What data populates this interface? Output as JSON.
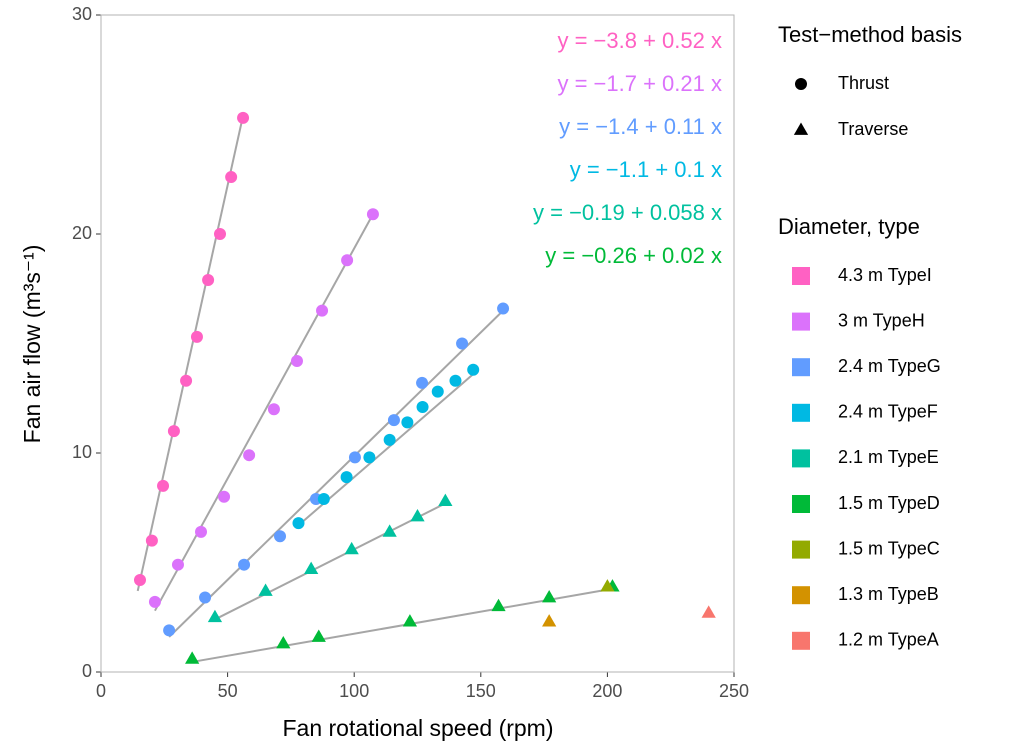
{
  "chart_data": {
    "type": "scatter",
    "x_label": "Fan rotational speed (rpm)",
    "y_label": "Fan air flow (m³s⁻¹)",
    "xlim": [
      0,
      250
    ],
    "ylim": [
      0,
      30
    ],
    "xticks": [
      0,
      50,
      100,
      150,
      200,
      250
    ],
    "yticks": [
      0,
      10,
      20,
      30
    ],
    "x_minor_grid": [
      25,
      75,
      125,
      175,
      225
    ],
    "y_minor_grid": [
      5,
      15,
      25
    ],
    "grid": true,
    "shape_legend_title": "Test−method basis",
    "shapes": [
      {
        "name": "Thrust",
        "shape": "circle"
      },
      {
        "name": "Traverse",
        "shape": "triangle"
      }
    ],
    "color_legend_title": "Diameter, type",
    "fit_color": "#a6a6a6",
    "series": [
      {
        "name": "4.3 m TypeI",
        "color": "#FF61C3",
        "shape": "circle",
        "x": [
          15.4,
          20.1,
          24.5,
          28.8,
          33.6,
          37.9,
          42.3,
          47.0,
          51.4,
          56.1
        ],
        "values": [
          4.2,
          6.0,
          8.5,
          11.0,
          13.3,
          15.3,
          17.9,
          20.0,
          22.6,
          25.3
        ],
        "fit_x": [
          14.5,
          56.1
        ],
        "fit_y": [
          3.7,
          25.4
        ],
        "equation": "y = −3.8 + 0.52 x"
      },
      {
        "name": "3 m TypeH",
        "color": "#DB72FB",
        "shape": "circle",
        "x": [
          21.3,
          30.4,
          39.5,
          48.6,
          58.5,
          68.3,
          77.4,
          87.3,
          97.2,
          107.4
        ],
        "values": [
          3.2,
          4.9,
          6.4,
          8.0,
          9.9,
          12.0,
          14.2,
          16.5,
          18.8,
          20.9
        ],
        "fit_x": [
          21.3,
          107.4
        ],
        "fit_y": [
          2.8,
          20.9
        ],
        "equation": "y = −1.7 + 0.21 x"
      },
      {
        "name": "2.4 m TypeG",
        "color": "#619CFF",
        "shape": "circle",
        "x": [
          26.9,
          41.1,
          56.5,
          70.7,
          84.9,
          100.3,
          115.7,
          126.8,
          142.6,
          158.8
        ],
        "values": [
          1.9,
          3.4,
          4.9,
          6.2,
          7.9,
          9.8,
          11.5,
          13.2,
          15.0,
          16.6
        ],
        "fit_x": [
          26.9,
          158.8
        ],
        "fit_y": [
          1.6,
          16.5
        ],
        "equation": "y = −1.4 + 0.11 x"
      },
      {
        "name": "2.4 m TypeF",
        "color": "#00B9E3",
        "shape": "circle",
        "x": [
          78,
          88,
          97,
          106,
          114,
          121,
          127,
          133,
          140,
          147
        ],
        "values": [
          6.8,
          7.9,
          8.9,
          9.8,
          10.6,
          11.4,
          12.1,
          12.8,
          13.3,
          13.8
        ],
        "fit_x": [
          78,
          147
        ],
        "fit_y": [
          6.7,
          13.6
        ],
        "equation": "y = −1.1 + 0.1 x"
      },
      {
        "name": "2.1 m TypeE",
        "color": "#00C19F",
        "shape": "triangle",
        "x": [
          45,
          65,
          83,
          99,
          114,
          125,
          136
        ],
        "values": [
          2.5,
          3.7,
          4.7,
          5.6,
          6.4,
          7.1,
          7.8
        ],
        "fit_x": [
          45,
          136
        ],
        "fit_y": [
          2.4,
          7.7
        ],
        "equation": "y = −0.19 + 0.058 x"
      },
      {
        "name": "1.5 m TypeD",
        "color": "#00BA38",
        "shape": "triangle",
        "x": [
          36,
          72,
          86,
          122,
          157,
          177,
          202
        ],
        "values": [
          0.6,
          1.3,
          1.6,
          2.3,
          3.0,
          3.4,
          3.9
        ],
        "fit_x": [
          36,
          202
        ],
        "fit_y": [
          0.46,
          3.8
        ],
        "equation": "y = −0.26 + 0.02 x"
      },
      {
        "name": "1.5 m TypeC",
        "color": "#93AA00",
        "shape": "triangle",
        "x": [
          200
        ],
        "values": [
          3.9
        ]
      },
      {
        "name": "1.3 m TypeB",
        "color": "#D39200",
        "shape": "triangle",
        "x": [
          177
        ],
        "values": [
          2.3
        ]
      },
      {
        "name": "1.2 m TypeA",
        "color": "#F8766D",
        "shape": "triangle",
        "x": [
          240
        ],
        "values": [
          2.7
        ]
      }
    ]
  }
}
